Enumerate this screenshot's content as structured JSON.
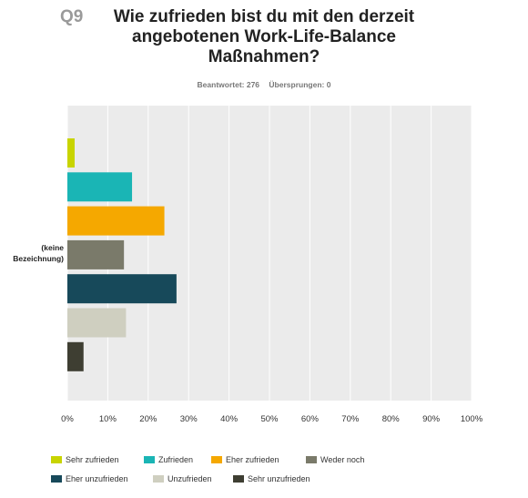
{
  "question": {
    "number": "Q9",
    "title_lines": [
      "Wie zufrieden bist du mit den derzeit",
      "angebotenen Work-Life-Balance",
      "Maßnahmen?"
    ]
  },
  "stats": {
    "answered": "Beantwortet: 276",
    "skipped": "Übersprungen: 0"
  },
  "colors": {
    "plot_background": "#ebebeb",
    "gridline": "#ffffff"
  },
  "chart_data": {
    "type": "bar",
    "orientation": "horizontal",
    "categories": [
      "(keine Bezeichnung)"
    ],
    "category_label_lines": [
      "(keine",
      "Bezeichnung)"
    ],
    "xlim": [
      0,
      100
    ],
    "x_ticks": [
      "0%",
      "10%",
      "20%",
      "30%",
      "40%",
      "50%",
      "60%",
      "70%",
      "80%",
      "90%",
      "100%"
    ],
    "grid": true,
    "legend_position": "bottom",
    "series": [
      {
        "name": "Sehr zufrieden",
        "color": "#c8d400",
        "values": [
          1.8
        ]
      },
      {
        "name": "Zufrieden",
        "color": "#1ab5b5",
        "values": [
          16
        ]
      },
      {
        "name": "Eher zufrieden",
        "color": "#f5a800",
        "values": [
          24
        ]
      },
      {
        "name": "Weder noch",
        "color": "#7a7a6a",
        "values": [
          14
        ]
      },
      {
        "name": "Eher unzufrieden",
        "color": "#17495a",
        "values": [
          27
        ]
      },
      {
        "name": "Unzufrieden",
        "color": "#cfcfc0",
        "values": [
          14.5
        ]
      },
      {
        "name": "Sehr unzufrieden",
        "color": "#3e3e32",
        "values": [
          4
        ]
      }
    ]
  }
}
